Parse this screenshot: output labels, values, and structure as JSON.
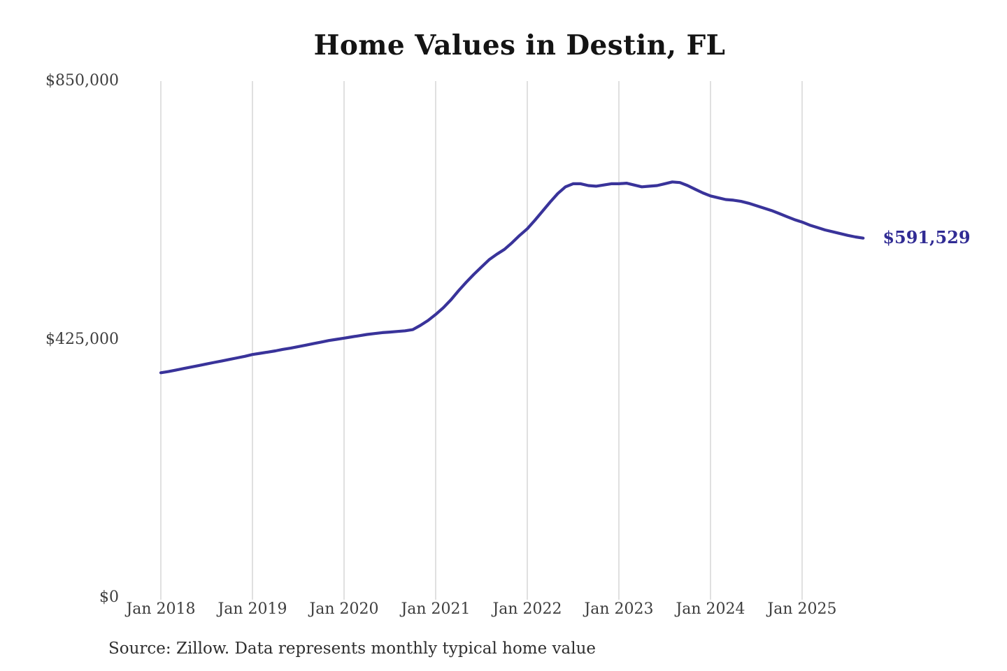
{
  "page": {
    "background_color": "#ffffff"
  },
  "chart": {
    "title": "Home Values in Destin, FL",
    "source": "Source: Zillow. Data represents monthly typical home value",
    "end_label": "$591,529",
    "colors": {
      "line": "#39339a",
      "end_label_text": "#312c94",
      "gridline": "#cbcbcb",
      "title_text": "#141414",
      "tick_label_text": "#3e3e3e",
      "source_text": "#2f2f2f"
    }
  },
  "chart_data": {
    "type": "line",
    "title": "Home Values in Destin, FL",
    "x_start": "2018-01",
    "x_end": "2025-09",
    "cadence": "monthly",
    "x_tick_labels": [
      "Jan 2018",
      "Jan 2019",
      "Jan 2020",
      "Jan 2021",
      "Jan 2022",
      "Jan 2023",
      "Jan 2024",
      "Jan 2025"
    ],
    "y_ticks": [
      0,
      425000,
      850000
    ],
    "y_tick_labels": [
      "$0",
      "$425,000",
      "$850,000"
    ],
    "ylim": [
      0,
      850000
    ],
    "grid": "vertical-only",
    "legend": "none",
    "annotation": "$591,529",
    "final_value": 591529,
    "series": [
      {
        "name": "Monthly typical home value",
        "color": "#39339a",
        "values": [
          370000,
          372000,
          374500,
          377000,
          379500,
          382000,
          384500,
          387000,
          389500,
          392000,
          394500,
          397000,
          400000,
          402000,
          404000,
          406000,
          408500,
          410500,
          413000,
          415500,
          418000,
          420500,
          423000,
          425000,
          427000,
          429000,
          431000,
          433000,
          434500,
          436000,
          437000,
          438000,
          439000,
          441000,
          448000,
          456000,
          466000,
          477000,
          490000,
          505000,
          519000,
          532000,
          544000,
          556000,
          565000,
          573000,
          584000,
          596000,
          607000,
          621000,
          636000,
          651000,
          665000,
          676000,
          681000,
          681000,
          678000,
          677000,
          679000,
          681000,
          681000,
          682000,
          679000,
          676000,
          677000,
          678000,
          681000,
          684000,
          683000,
          678000,
          672000,
          666000,
          661000,
          658000,
          655000,
          654000,
          652000,
          649000,
          645000,
          641000,
          637000,
          632000,
          627000,
          622000,
          618000,
          613000,
          609000,
          605000,
          602000,
          599000,
          596000,
          593500,
          591529
        ]
      }
    ]
  }
}
